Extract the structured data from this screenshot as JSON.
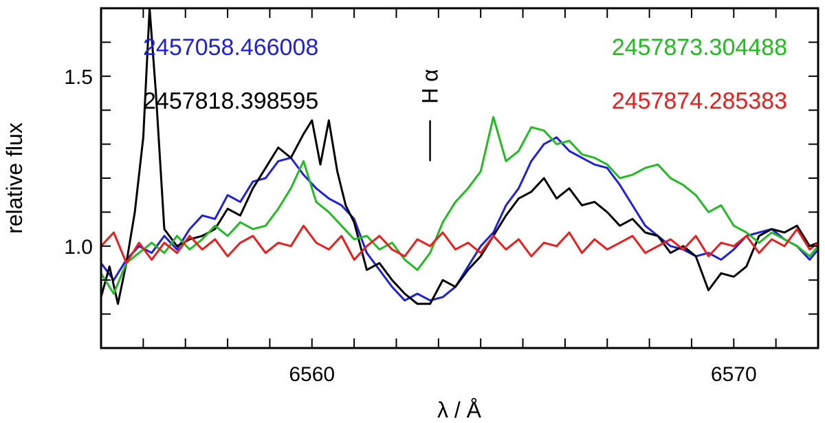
{
  "chart_data": {
    "type": "line",
    "xlabel": "λ / Å",
    "ylabel": "relative flux",
    "xlim": [
      6555.0,
      6572.0
    ],
    "ylim": [
      0.7,
      1.7
    ],
    "x_tick_labels": [
      "6560",
      "6570"
    ],
    "x_tick_label_values": [
      6560,
      6570
    ],
    "x_minor_ticks": [
      6556,
      6557,
      6558,
      6559,
      6560,
      6561,
      6562,
      6563,
      6564,
      6565,
      6566,
      6567,
      6568,
      6569,
      6570,
      6571
    ],
    "y_tick_labels": [
      "1.0",
      "1.5"
    ],
    "y_tick_label_values": [
      1.0,
      1.5
    ],
    "y_minor_ticks": [
      0.8,
      0.9,
      1.0,
      1.1,
      1.2,
      1.3,
      1.4,
      1.5,
      1.6
    ],
    "annotation": {
      "label": "H α",
      "x": 6562.8,
      "line_y": [
        1.25,
        1.37
      ]
    },
    "legend_entries": [
      {
        "text": "2457058.466008",
        "color": "#1f1fe0",
        "series_index": 0
      },
      {
        "text": "2457818.398595",
        "color": "#000000",
        "series_index": 1
      },
      {
        "text": "2457873.304488",
        "color": "#22bb22",
        "series_index": 2
      },
      {
        "text": "2457874.285383",
        "color": "#ee1c1c",
        "series_index": 3
      }
    ],
    "series": [
      {
        "name": "2457058.466008",
        "color": "#1f1fe0",
        "x": [
          6555.0,
          6555.3,
          6555.6,
          6555.9,
          6556.2,
          6556.5,
          6556.8,
          6557.1,
          6557.4,
          6557.7,
          6558.0,
          6558.3,
          6558.6,
          6558.9,
          6559.2,
          6559.5,
          6559.8,
          6560.1,
          6560.4,
          6560.7,
          6561.0,
          6561.3,
          6561.6,
          6561.9,
          6562.2,
          6562.5,
          6562.8,
          6563.1,
          6563.4,
          6563.7,
          6564.0,
          6564.3,
          6564.6,
          6564.9,
          6565.2,
          6565.5,
          6565.8,
          6566.1,
          6566.4,
          6566.7,
          6567.0,
          6567.3,
          6567.6,
          6567.9,
          6568.2,
          6568.5,
          6568.8,
          6569.1,
          6569.4,
          6569.7,
          6570.0,
          6570.3,
          6570.6,
          6570.9,
          6571.2,
          6571.5,
          6571.8,
          6572.0
        ],
        "y": [
          0.95,
          0.9,
          0.96,
          1.0,
          0.98,
          1.03,
          0.99,
          1.05,
          1.09,
          1.08,
          1.15,
          1.13,
          1.19,
          1.2,
          1.25,
          1.26,
          1.21,
          1.17,
          1.14,
          1.12,
          1.08,
          0.98,
          0.93,
          0.88,
          0.84,
          0.86,
          0.84,
          0.85,
          0.88,
          0.94,
          1.0,
          1.04,
          1.12,
          1.17,
          1.25,
          1.3,
          1.32,
          1.28,
          1.26,
          1.24,
          1.23,
          1.18,
          1.12,
          1.06,
          1.03,
          1.0,
          0.99,
          0.97,
          0.98,
          0.96,
          0.99,
          1.03,
          1.04,
          1.05,
          1.02,
          1.0,
          0.96,
          0.99
        ]
      },
      {
        "name": "2457818.398595",
        "color": "#000000",
        "x": [
          6555.0,
          6555.2,
          6555.4,
          6555.6,
          6555.8,
          6556.0,
          6556.15,
          6556.3,
          6556.5,
          6556.8,
          6557.1,
          6557.4,
          6557.7,
          6558.0,
          6558.3,
          6558.6,
          6558.9,
          6559.2,
          6559.5,
          6559.8,
          6560.0,
          6560.2,
          6560.4,
          6560.6,
          6560.8,
          6561.0,
          6561.3,
          6561.6,
          6561.9,
          6562.2,
          6562.5,
          6562.8,
          6563.1,
          6563.4,
          6563.7,
          6564.0,
          6564.3,
          6564.6,
          6564.9,
          6565.2,
          6565.5,
          6565.8,
          6566.1,
          6566.4,
          6566.7,
          6567.0,
          6567.3,
          6567.6,
          6567.9,
          6568.2,
          6568.5,
          6568.8,
          6569.1,
          6569.4,
          6569.7,
          6570.0,
          6570.3,
          6570.6,
          6570.9,
          6571.2,
          6571.5,
          6571.8,
          6572.0
        ],
        "y": [
          0.85,
          0.94,
          0.83,
          0.95,
          1.1,
          1.32,
          1.7,
          1.45,
          1.05,
          1.0,
          1.02,
          1.03,
          1.05,
          1.11,
          1.09,
          1.17,
          1.23,
          1.29,
          1.26,
          1.33,
          1.37,
          1.24,
          1.37,
          1.22,
          1.12,
          1.07,
          0.93,
          0.95,
          0.9,
          0.86,
          0.83,
          0.83,
          0.9,
          0.88,
          0.93,
          0.97,
          1.03,
          1.09,
          1.14,
          1.16,
          1.2,
          1.14,
          1.17,
          1.12,
          1.13,
          1.1,
          1.06,
          1.08,
          1.04,
          1.03,
          0.98,
          1.0,
          0.97,
          0.87,
          0.92,
          0.91,
          0.94,
          1.03,
          1.05,
          1.04,
          1.06,
          1.0,
          1.01
        ]
      },
      {
        "name": "2457873.304488",
        "color": "#22bb22",
        "x": [
          6555.0,
          6555.3,
          6555.6,
          6555.9,
          6556.2,
          6556.5,
          6556.8,
          6557.1,
          6557.4,
          6557.7,
          6558.0,
          6558.3,
          6558.6,
          6558.9,
          6559.2,
          6559.5,
          6559.8,
          6560.1,
          6560.4,
          6560.7,
          6561.0,
          6561.3,
          6561.6,
          6561.9,
          6562.2,
          6562.5,
          6562.8,
          6563.1,
          6563.4,
          6563.7,
          6564.0,
          6564.3,
          6564.6,
          6564.9,
          6565.2,
          6565.5,
          6565.8,
          6566.1,
          6566.4,
          6566.7,
          6567.0,
          6567.3,
          6567.6,
          6567.9,
          6568.2,
          6568.5,
          6568.8,
          6569.1,
          6569.4,
          6569.7,
          6570.0,
          6570.3,
          6570.6,
          6570.9,
          6571.2,
          6571.5,
          6571.8,
          6572.0
        ],
        "y": [
          0.92,
          0.86,
          0.95,
          0.98,
          1.01,
          0.98,
          1.03,
          0.99,
          1.02,
          1.06,
          1.03,
          1.07,
          1.05,
          1.06,
          1.11,
          1.17,
          1.25,
          1.13,
          1.1,
          1.06,
          1.02,
          1.03,
          0.99,
          1.01,
          0.96,
          0.93,
          0.98,
          1.07,
          1.13,
          1.17,
          1.22,
          1.38,
          1.25,
          1.28,
          1.35,
          1.34,
          1.3,
          1.31,
          1.27,
          1.26,
          1.24,
          1.2,
          1.21,
          1.23,
          1.24,
          1.2,
          1.18,
          1.15,
          1.1,
          1.12,
          1.06,
          1.04,
          1.01,
          1.04,
          1.02,
          1.0,
          0.97,
          1.0
        ]
      },
      {
        "name": "2457874.285383",
        "color": "#ee1c1c",
        "x": [
          6555.0,
          6555.3,
          6555.6,
          6555.9,
          6556.2,
          6556.5,
          6556.8,
          6557.1,
          6557.4,
          6557.7,
          6558.0,
          6558.3,
          6558.6,
          6558.9,
          6559.2,
          6559.5,
          6559.8,
          6560.1,
          6560.4,
          6560.7,
          6561.0,
          6561.3,
          6561.6,
          6561.9,
          6562.2,
          6562.5,
          6562.8,
          6563.1,
          6563.4,
          6563.7,
          6564.0,
          6564.3,
          6564.6,
          6564.9,
          6565.2,
          6565.5,
          6565.8,
          6566.1,
          6566.4,
          6566.7,
          6567.0,
          6567.3,
          6567.6,
          6567.9,
          6568.2,
          6568.5,
          6568.8,
          6569.1,
          6569.4,
          6569.7,
          6570.0,
          6570.3,
          6570.6,
          6570.9,
          6571.2,
          6571.5,
          6571.8,
          6572.0
        ],
        "y": [
          1.0,
          1.04,
          0.95,
          1.01,
          0.96,
          1.01,
          0.98,
          1.03,
          0.99,
          1.02,
          0.97,
          1.01,
          1.03,
          0.98,
          1.01,
          1.0,
          1.06,
          1.01,
          0.99,
          1.03,
          0.96,
          1.0,
          1.03,
          0.99,
          0.97,
          1.02,
          1.0,
          1.04,
          0.99,
          1.01,
          0.98,
          1.03,
          0.99,
          1.02,
          0.97,
          1.01,
          1.0,
          1.04,
          0.98,
          1.02,
          0.99,
          1.01,
          1.03,
          0.98,
          1.0,
          1.02,
          0.99,
          1.03,
          0.97,
          1.01,
          1.0,
          1.03,
          0.98,
          1.02,
          1.0,
          1.05,
          0.99,
          1.01
        ]
      }
    ]
  }
}
